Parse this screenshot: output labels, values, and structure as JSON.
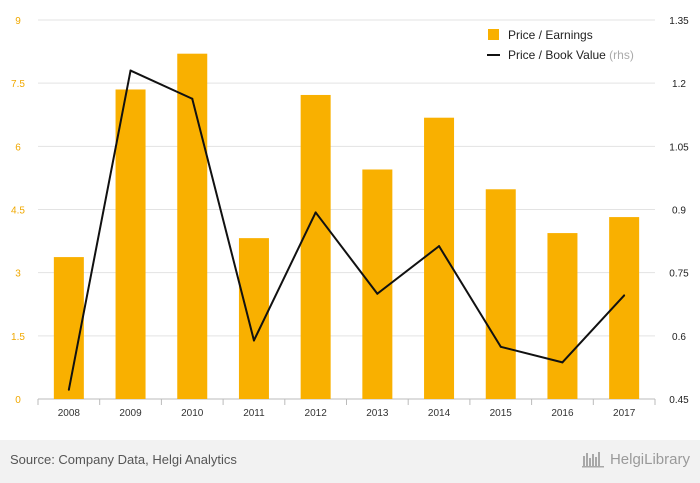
{
  "chart_data": {
    "type": "bar+line",
    "categories": [
      "2008",
      "2009",
      "2010",
      "2011",
      "2012",
      "2013",
      "2014",
      "2015",
      "2016",
      "2017"
    ],
    "series": [
      {
        "name": "Price / Earnings",
        "type": "bar",
        "axis": "left",
        "color": "#f9b000",
        "values": [
          3.37,
          7.35,
          8.2,
          3.82,
          7.22,
          5.45,
          6.68,
          4.98,
          3.94,
          4.32
        ]
      },
      {
        "name": "Price / Book Value",
        "name_suffix": "(rhs)",
        "type": "line",
        "axis": "right",
        "color": "#111111",
        "values": [
          0.472,
          1.23,
          1.163,
          0.589,
          0.893,
          0.7,
          0.813,
          0.574,
          0.537,
          0.696
        ]
      }
    ],
    "y_left": {
      "ticks": [
        "0",
        "1.5",
        "3",
        "4.5",
        "6",
        "7.5",
        "9"
      ],
      "ylim": [
        0,
        9
      ]
    },
    "y_right": {
      "ticks": [
        "0.45",
        "0.6",
        "0.75",
        "0.9",
        "1.05",
        "1.2",
        "1.35"
      ],
      "ylim": [
        0.45,
        1.35
      ]
    },
    "grid": true,
    "legend_position": "top-right"
  },
  "footer": {
    "source": "Source: Company Data, Helgi Analytics",
    "brand": "HelgiLibrary"
  }
}
